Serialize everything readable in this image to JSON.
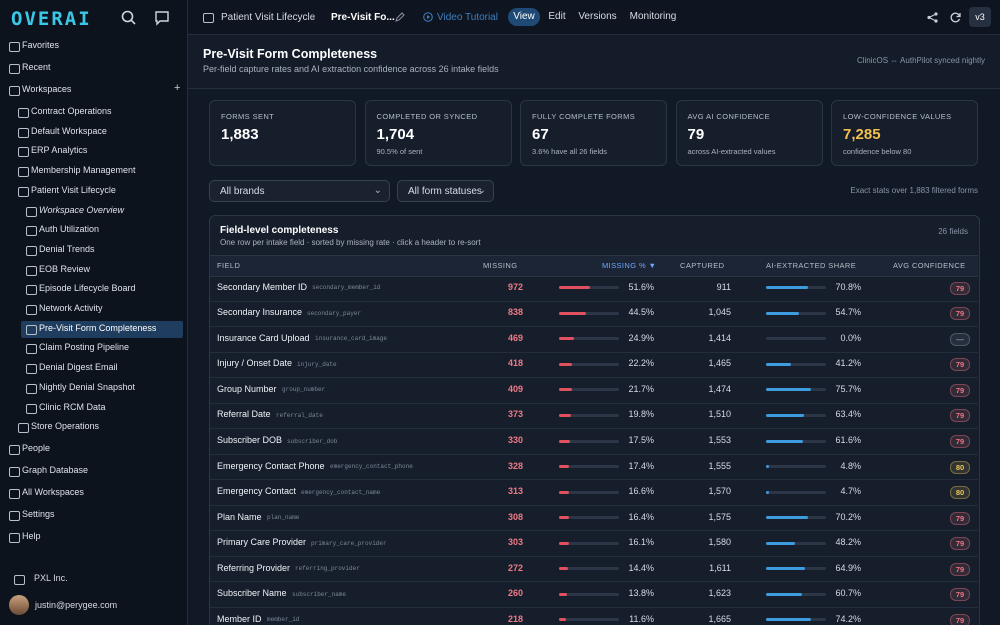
{
  "sidebar": {
    "logo": "OVERAI",
    "items": [
      {
        "label": "Favorites",
        "level": 0
      },
      {
        "label": "Recent",
        "level": 0
      },
      {
        "label": "Workspaces",
        "level": 0,
        "add": "+"
      },
      {
        "label": "Contract Operations",
        "level": 1
      },
      {
        "label": "Default Workspace",
        "level": 1
      },
      {
        "label": "ERP Analytics",
        "level": 1
      },
      {
        "label": "Membership Management",
        "level": 1
      },
      {
        "label": "Patient Visit Lifecycle",
        "level": 1
      },
      {
        "label": "Workspace Overview",
        "level": 2,
        "italic": true
      },
      {
        "label": "Auth Utilization",
        "level": 2
      },
      {
        "label": "Denial Trends",
        "level": 2
      },
      {
        "label": "EOB Review",
        "level": 2
      },
      {
        "label": "Episode Lifecycle Board",
        "level": 2
      },
      {
        "label": "Network Activity",
        "level": 2
      },
      {
        "label": "Pre-Visit Form Completeness",
        "level": 2,
        "active": true
      },
      {
        "label": "Claim Posting Pipeline",
        "level": 2
      },
      {
        "label": "Denial Digest Email",
        "level": 2
      },
      {
        "label": "Nightly Denial Snapshot",
        "level": 2
      },
      {
        "label": "Clinic RCM Data",
        "level": 2
      },
      {
        "label": "Store Operations",
        "level": 1
      },
      {
        "label": "People",
        "level": 0
      },
      {
        "label": "Graph Database",
        "level": 0
      },
      {
        "label": "All Workspaces",
        "level": 0
      },
      {
        "label": "Settings",
        "level": 0
      },
      {
        "label": "Help",
        "level": 0
      }
    ],
    "org": "PXL Inc.",
    "user": "justin@perygee.com"
  },
  "topbar": {
    "breadcrumb": "Patient Visit Lifecycle",
    "page": "Pre-Visit Fo...",
    "tutorial": "Video Tutorial",
    "tabs": [
      "View",
      "Edit",
      "Versions",
      "Monitoring"
    ],
    "active_tab": 0,
    "version": "v3"
  },
  "header": {
    "title": "Pre-Visit Form Completeness",
    "subtitle": "Per-field capture rates and AI extraction confidence across 26 intake fields",
    "sync_note": "ClinicOS ⇔ AuthPilot synced nightly"
  },
  "kpis": [
    {
      "label": "FORMS SENT",
      "value": "1,883",
      "note": ""
    },
    {
      "label": "COMPLETED OR SYNCED",
      "value": "1,704",
      "note": "90.5% of sent"
    },
    {
      "label": "FULLY COMPLETE FORMS",
      "value": "67",
      "note": "3.6% have all 26 fields"
    },
    {
      "label": "AVG AI CONFIDENCE",
      "value": "79",
      "note": "across AI-extracted values"
    },
    {
      "label": "LOW-CONFIDENCE VALUES",
      "value": "7,285",
      "note": "confidence below 80",
      "color": "#f2c14e"
    }
  ],
  "filters": {
    "brands": "All brands",
    "statuses": "All form statuses",
    "stats_note": "Exact stats over 1,883 filtered forms"
  },
  "table": {
    "title": "Field-level completeness",
    "subtitle": "One row per intake field · sorted by missing rate · click a header to re-sort",
    "count": "26 fields",
    "columns": [
      "FIELD",
      "MISSING",
      "MISSING % ▼",
      "CAPTURED",
      "AI-EXTRACTED SHARE",
      "AVG CONFIDENCE"
    ],
    "sorted_column": 2,
    "rows": [
      {
        "field": "Secondary Member ID",
        "key": "secondary_member_id",
        "missing": 972,
        "missing_pct": {
          "value": 51.6,
          "label": "51.6%"
        },
        "captured": "911",
        "ai_share": {
          "value": 70.8,
          "label": "70.8%"
        },
        "confidence": "79",
        "confidence_color": "#ec7582"
      },
      {
        "field": "Secondary Insurance",
        "key": "secondary_payer",
        "missing": 838,
        "missing_pct": {
          "value": 44.5,
          "label": "44.5%"
        },
        "captured": "1,045",
        "ai_share": {
          "value": 54.7,
          "label": "54.7%"
        },
        "confidence": "79",
        "confidence_color": "#ec7582"
      },
      {
        "field": "Insurance Card Upload",
        "key": "insurance_card_image",
        "missing": 469,
        "missing_pct": {
          "value": 24.9,
          "label": "24.9%"
        },
        "captured": "1,414",
        "ai_share": {
          "value": 0.0,
          "label": "0.0%"
        },
        "confidence": "—",
        "confidence_color": "#8a94a6"
      },
      {
        "field": "Injury / Onset Date",
        "key": "injury_date",
        "missing": 418,
        "missing_pct": {
          "value": 22.2,
          "label": "22.2%"
        },
        "captured": "1,465",
        "ai_share": {
          "value": 41.2,
          "label": "41.2%"
        },
        "confidence": "79",
        "confidence_color": "#ec7582"
      },
      {
        "field": "Group Number",
        "key": "group_number",
        "missing": 409,
        "missing_pct": {
          "value": 21.7,
          "label": "21.7%"
        },
        "captured": "1,474",
        "ai_share": {
          "value": 75.7,
          "label": "75.7%"
        },
        "confidence": "79",
        "confidence_color": "#ec7582"
      },
      {
        "field": "Referral Date",
        "key": "referral_date",
        "missing": 373,
        "missing_pct": {
          "value": 19.8,
          "label": "19.8%"
        },
        "captured": "1,510",
        "ai_share": {
          "value": 63.4,
          "label": "63.4%"
        },
        "confidence": "79",
        "confidence_color": "#ec7582"
      },
      {
        "field": "Subscriber DOB",
        "key": "subscriber_dob",
        "missing": 330,
        "missing_pct": {
          "value": 17.5,
          "label": "17.5%"
        },
        "captured": "1,553",
        "ai_share": {
          "value": 61.6,
          "label": "61.6%"
        },
        "confidence": "79",
        "confidence_color": "#ec7582"
      },
      {
        "field": "Emergency Contact Phone",
        "key": "emergency_contact_phone",
        "missing": 328,
        "missing_pct": {
          "value": 17.4,
          "label": "17.4%"
        },
        "captured": "1,555",
        "ai_share": {
          "value": 4.8,
          "label": "4.8%"
        },
        "confidence": "80",
        "confidence_color": "#e9c65a"
      },
      {
        "field": "Emergency Contact",
        "key": "emergency_contact_name",
        "missing": 313,
        "missing_pct": {
          "value": 16.6,
          "label": "16.6%"
        },
        "captured": "1,570",
        "ai_share": {
          "value": 4.7,
          "label": "4.7%"
        },
        "confidence": "80",
        "confidence_color": "#e9c65a"
      },
      {
        "field": "Plan Name",
        "key": "plan_name",
        "missing": 308,
        "missing_pct": {
          "value": 16.4,
          "label": "16.4%"
        },
        "captured": "1,575",
        "ai_share": {
          "value": 70.2,
          "label": "70.2%"
        },
        "confidence": "79",
        "confidence_color": "#ec7582"
      },
      {
        "field": "Primary Care Provider",
        "key": "primary_care_provider",
        "missing": 303,
        "missing_pct": {
          "value": 16.1,
          "label": "16.1%"
        },
        "captured": "1,580",
        "ai_share": {
          "value": 48.2,
          "label": "48.2%"
        },
        "confidence": "79",
        "confidence_color": "#ec7582"
      },
      {
        "field": "Referring Provider",
        "key": "referring_provider",
        "missing": 272,
        "missing_pct": {
          "value": 14.4,
          "label": "14.4%"
        },
        "captured": "1,611",
        "ai_share": {
          "value": 64.9,
          "label": "64.9%"
        },
        "confidence": "79",
        "confidence_color": "#ec7582"
      },
      {
        "field": "Subscriber Name",
        "key": "subscriber_name",
        "missing": 260,
        "missing_pct": {
          "value": 13.8,
          "label": "13.8%"
        },
        "captured": "1,623",
        "ai_share": {
          "value": 60.7,
          "label": "60.7%"
        },
        "confidence": "79",
        "confidence_color": "#ec7582"
      },
      {
        "field": "Member ID",
        "key": "member_id",
        "missing": 218,
        "missing_pct": {
          "value": 11.6,
          "label": "11.6%"
        },
        "captured": "1,665",
        "ai_share": {
          "value": 74.2,
          "label": "74.2%"
        },
        "confidence": "79",
        "confidence_color": "#ec7582"
      }
    ]
  }
}
